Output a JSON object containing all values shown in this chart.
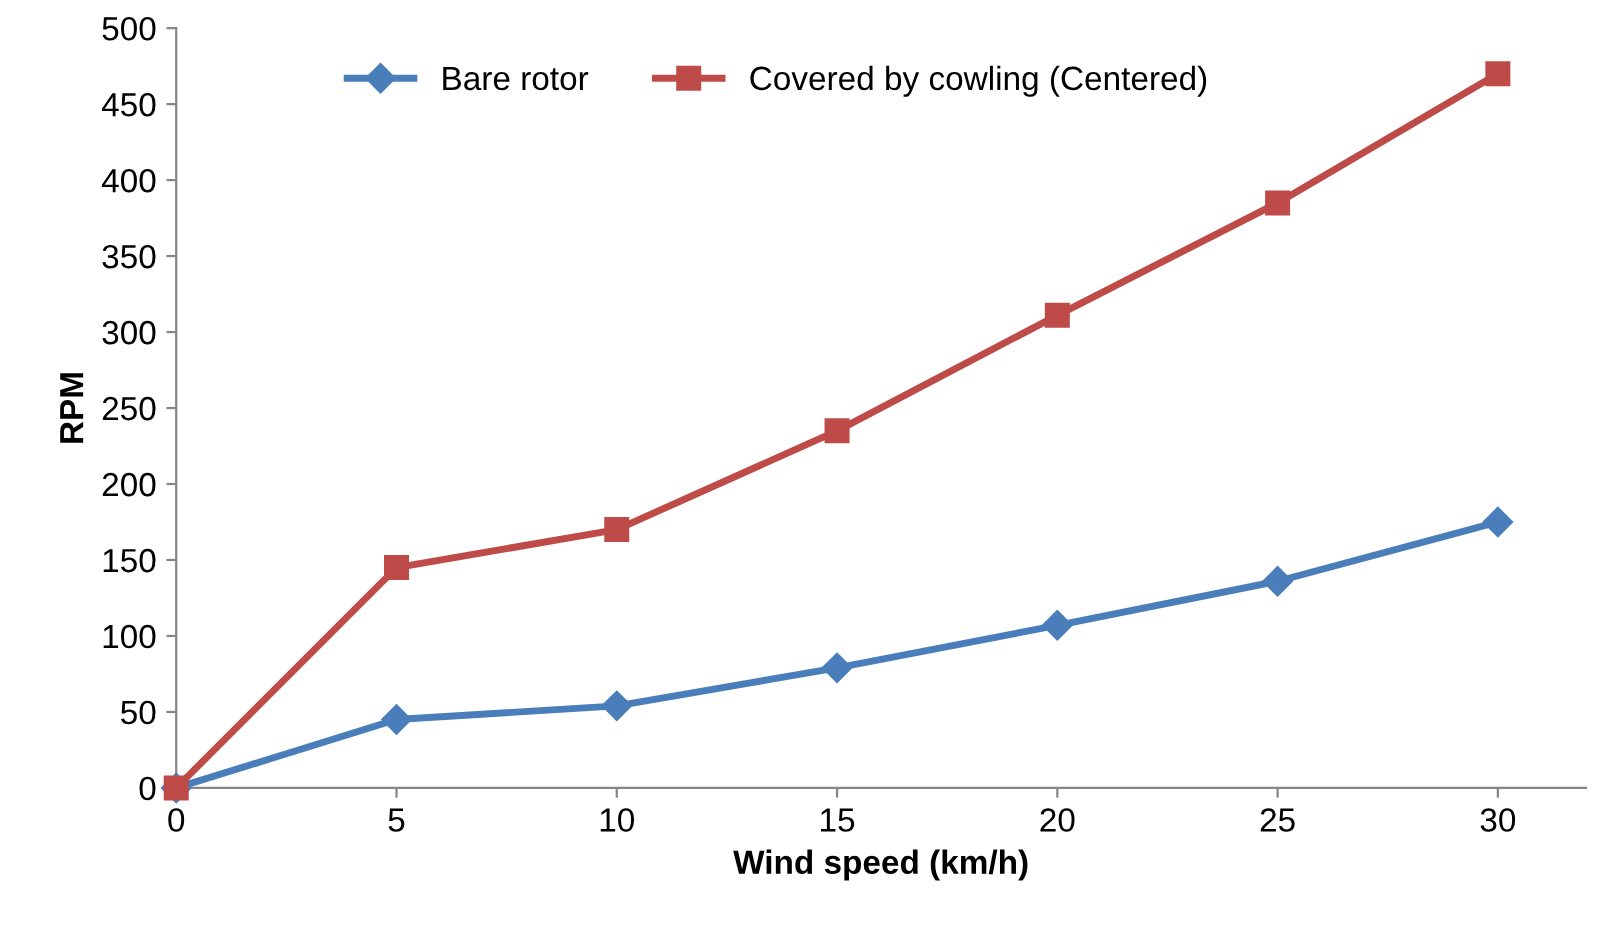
{
  "chart_data": {
    "type": "line",
    "xlabel": "Wind speed (km/h)",
    "ylabel": "RPM",
    "x": [
      0,
      5,
      10,
      15,
      20,
      25,
      30
    ],
    "series": [
      {
        "name": "Bare rotor",
        "color": "#4a7ebb",
        "marker": "diamond",
        "values": [
          0,
          45,
          54,
          79,
          107,
          136,
          175
        ]
      },
      {
        "name": "Covered by cowling (Centered)",
        "color": "#be4b48",
        "marker": "square",
        "values": [
          0,
          145,
          170,
          235,
          311,
          385,
          470
        ]
      }
    ],
    "xlim": [
      0,
      32
    ],
    "xticks": [
      0,
      5,
      10,
      15,
      20,
      25,
      30
    ],
    "ylim": [
      0,
      500
    ],
    "yticks": [
      0,
      50,
      100,
      150,
      200,
      250,
      300,
      350,
      400,
      450,
      500
    ],
    "grid": false,
    "legend": "top left"
  }
}
